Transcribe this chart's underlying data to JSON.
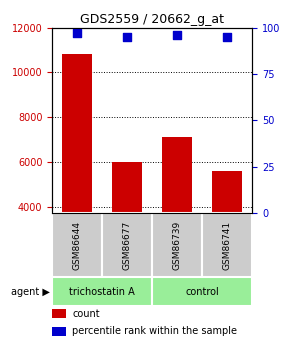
{
  "title": "GDS2559 / 20662_g_at",
  "samples": [
    "GSM86644",
    "GSM86677",
    "GSM86739",
    "GSM86741"
  ],
  "counts": [
    10800,
    6000,
    7100,
    5600
  ],
  "percentiles": [
    97,
    95,
    96,
    95
  ],
  "ylim_left": [
    3700,
    12000
  ],
  "ylim_right": [
    0,
    100
  ],
  "yticks_left": [
    4000,
    6000,
    8000,
    10000,
    12000
  ],
  "yticks_right": [
    0,
    25,
    50,
    75,
    100
  ],
  "bar_color": "#cc0000",
  "dot_color": "#0000cc",
  "group1_label": "trichostatin A",
  "group2_label": "control",
  "group1_indices": [
    0,
    1
  ],
  "group2_indices": [
    2,
    3
  ],
  "agent_label": "agent",
  "legend_count": "count",
  "legend_pct": "percentile rank within the sample",
  "bar_width": 0.6,
  "sample_box_color": "#cccccc",
  "group_box_color": "#99ee99",
  "title_color_left": "#cc0000",
  "title_color_right": "#0000cc"
}
